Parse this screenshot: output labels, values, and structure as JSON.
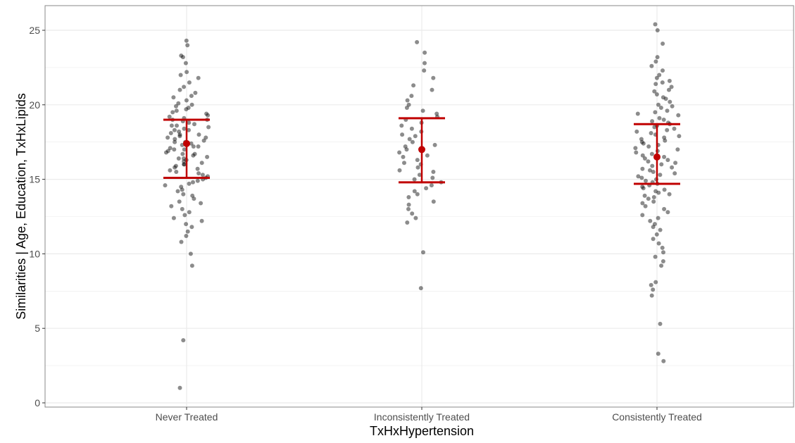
{
  "chart_data": {
    "type": "scatter",
    "subtype": "jitter strip plot with mean and error bars",
    "xlabel": "TxHxHypertension",
    "ylabel": "Similarities | Age, Education, TxHxLipids",
    "categories": [
      "Never Treated",
      "Inconsistently Treated",
      "Consistently Treated"
    ],
    "ylim": [
      0,
      25
    ],
    "yticks": [
      "0",
      "5",
      "10",
      "15",
      "20",
      "25"
    ],
    "grid": true,
    "summary": [
      {
        "category": "Never Treated",
        "mean": 17.4,
        "lower": 15.1,
        "upper": 19.0
      },
      {
        "category": "Inconsistently Treated",
        "mean": 17.0,
        "lower": 14.8,
        "upper": 19.1
      },
      {
        "category": "Consistently Treated",
        "mean": 16.5,
        "lower": 14.7,
        "upper": 18.7
      }
    ],
    "points": [
      {
        "category": "Never Treated",
        "y": [
          24.3,
          24.0,
          23.3,
          23.2,
          22.8,
          22.2,
          22.0,
          21.8,
          21.5,
          21.2,
          21.0,
          20.8,
          20.6,
          20.5,
          20.3,
          20.1,
          20.0,
          19.9,
          19.8,
          19.7,
          19.6,
          19.5,
          19.4,
          19.3,
          19.2,
          19.1,
          19.0,
          19.0,
          18.9,
          18.8,
          18.7,
          18.6,
          18.6,
          18.5,
          18.4,
          18.3,
          18.3,
          18.2,
          18.1,
          18.0,
          18.0,
          17.9,
          17.8,
          17.8,
          17.7,
          17.6,
          17.5,
          17.5,
          17.4,
          17.3,
          17.2,
          17.2,
          17.1,
          17.0,
          17.0,
          16.9,
          16.8,
          16.7,
          16.7,
          16.6,
          16.5,
          16.4,
          16.4,
          16.3,
          16.2,
          16.1,
          16.0,
          16.0,
          15.9,
          15.8,
          15.7,
          15.6,
          15.5,
          15.4,
          15.3,
          15.2,
          15.1,
          15.0,
          14.9,
          14.8,
          14.7,
          14.6,
          14.5,
          14.3,
          14.2,
          14.0,
          13.9,
          13.7,
          13.5,
          13.4,
          13.2,
          13.0,
          12.8,
          12.6,
          12.4,
          12.2,
          12.0,
          11.8,
          11.5,
          11.2,
          10.8,
          10.0,
          9.2,
          4.2,
          1.0
        ]
      },
      {
        "category": "Inconsistently Treated",
        "y": [
          24.2,
          23.5,
          22.8,
          22.3,
          21.8,
          21.3,
          21.0,
          20.6,
          20.3,
          20.0,
          19.8,
          19.6,
          19.4,
          19.2,
          19.0,
          18.8,
          18.6,
          18.4,
          18.2,
          18.0,
          17.9,
          17.7,
          17.5,
          17.3,
          17.2,
          17.0,
          16.8,
          16.6,
          16.5,
          16.3,
          16.1,
          16.0,
          15.8,
          15.6,
          15.5,
          15.3,
          15.1,
          15.0,
          14.8,
          14.6,
          14.4,
          14.2,
          14.0,
          13.8,
          13.5,
          13.3,
          13.0,
          12.7,
          12.4,
          12.1,
          10.1,
          7.7
        ]
      },
      {
        "category": "Consistently Treated",
        "y": [
          25.4,
          25.0,
          24.1,
          23.2,
          22.9,
          22.6,
          22.3,
          22.0,
          21.8,
          21.6,
          21.5,
          21.4,
          21.2,
          21.0,
          20.9,
          20.7,
          20.5,
          20.4,
          20.2,
          20.0,
          19.9,
          19.8,
          19.6,
          19.5,
          19.4,
          19.3,
          19.1,
          19.0,
          18.9,
          18.8,
          18.7,
          18.6,
          18.5,
          18.4,
          18.3,
          18.2,
          18.1,
          18.0,
          17.9,
          17.8,
          17.7,
          17.6,
          17.5,
          17.4,
          17.3,
          17.2,
          17.1,
          17.0,
          16.9,
          16.8,
          16.7,
          16.6,
          16.5,
          16.4,
          16.3,
          16.2,
          16.1,
          16.0,
          15.9,
          15.8,
          15.7,
          15.6,
          15.5,
          15.4,
          15.3,
          15.2,
          15.1,
          15.0,
          14.9,
          14.8,
          14.7,
          14.6,
          14.5,
          14.4,
          14.3,
          14.2,
          14.1,
          14.0,
          13.9,
          13.8,
          13.7,
          13.5,
          13.4,
          13.2,
          13.0,
          12.8,
          12.6,
          12.4,
          12.2,
          12.0,
          11.8,
          11.6,
          11.3,
          11.0,
          10.7,
          10.4,
          10.1,
          9.8,
          9.5,
          9.2,
          8.1,
          7.9,
          7.6,
          7.2,
          5.3,
          3.3,
          2.8
        ]
      }
    ],
    "colors": {
      "points": "#000000",
      "summary": "#c00000",
      "grid": "#ebebeb",
      "panel_border": "#888888",
      "tick_text": "#4d4d4d"
    }
  }
}
